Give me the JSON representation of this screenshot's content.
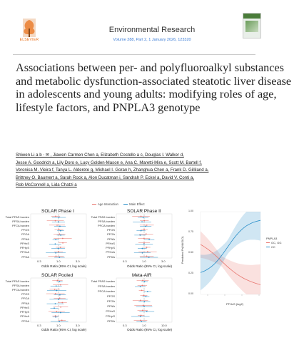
{
  "header": {
    "publisher": "ELSEVIER",
    "journal": "Environmental Research",
    "volume": "Volume 288, Part 2, 1 January 2026, 123320"
  },
  "article": {
    "title": "Associations between per- and polyfluoroalkyl substances and metabolic dysfunction-associated steatotic liver disease in adolescents and young adults: modifying roles of age, lifestyle factors, and PNPLA3 genotype",
    "authors_line1": "Shiwen Li a b ⋅ ✉ , Jiawen Carmen Chen a, Elizabeth Costello a c, Douglas I. Walker d,",
    "authors_line2": "Jesse A. Goodrich a, Lily Doro e, Lucy Golden-Mason e, Ana C. Maretti-Mira e, Scott M. Bartell f,",
    "authors_line3": "Veronica M. Vieira f, Tanya L. Alderete g, Michael I. Goran h, Zhanghua Chen a, Frank D. Gilliland a,",
    "authors_line4": "Brittney O. Baumert a, Sarah Rock a, Alon Ducatman i, Sandrah P. Eckel a, David V. Conti a,",
    "authors_line5": "Rob McConnell a, Lida Chatzi a"
  },
  "figure": {
    "legend": {
      "age": "Age Interaction",
      "main": "Main Effect"
    },
    "colors": {
      "age": "#e8766f",
      "main": "#2a8fc9"
    },
    "xlabel": "Odds Ratio (95% CI, log scale)",
    "xticks": [
      "0.3",
      "1.0",
      "3.0"
    ],
    "xticks_meta": [
      "0.3",
      "1.0",
      "10.0"
    ],
    "ylabels_pooled": [
      "Total PFAS burden",
      "PFSA burden",
      "PFCA burden",
      "PFOS",
      "PFOA",
      "PFNA",
      "PFHxS",
      "PFHpS",
      "PFHxA",
      "PFDA"
    ],
    "ylabels_meta": [
      "Total PFAS burden",
      "PFSA burden",
      "PFCA burden",
      "PFOS",
      "PFOA",
      "PFNA",
      "PFHxS",
      "PFHpS",
      "PFDA"
    ],
    "panels": [
      {
        "title": "SOLAR Phase I"
      },
      {
        "title": "SOLAR Phase II"
      },
      {
        "title": "SOLAR Pooled"
      },
      {
        "title": "Meta-AIR"
      }
    ],
    "right_panel": {
      "ylabel": "Predicted Pr(MASLD)",
      "xlabel": "PFHxS (log2)",
      "yticks": [
        "1.00",
        "0.75",
        "0.50",
        "0.25",
        "0.00"
      ],
      "legend_title": "PNPLA3",
      "legend_items": [
        "GC, GG",
        "CC"
      ]
    }
  }
}
